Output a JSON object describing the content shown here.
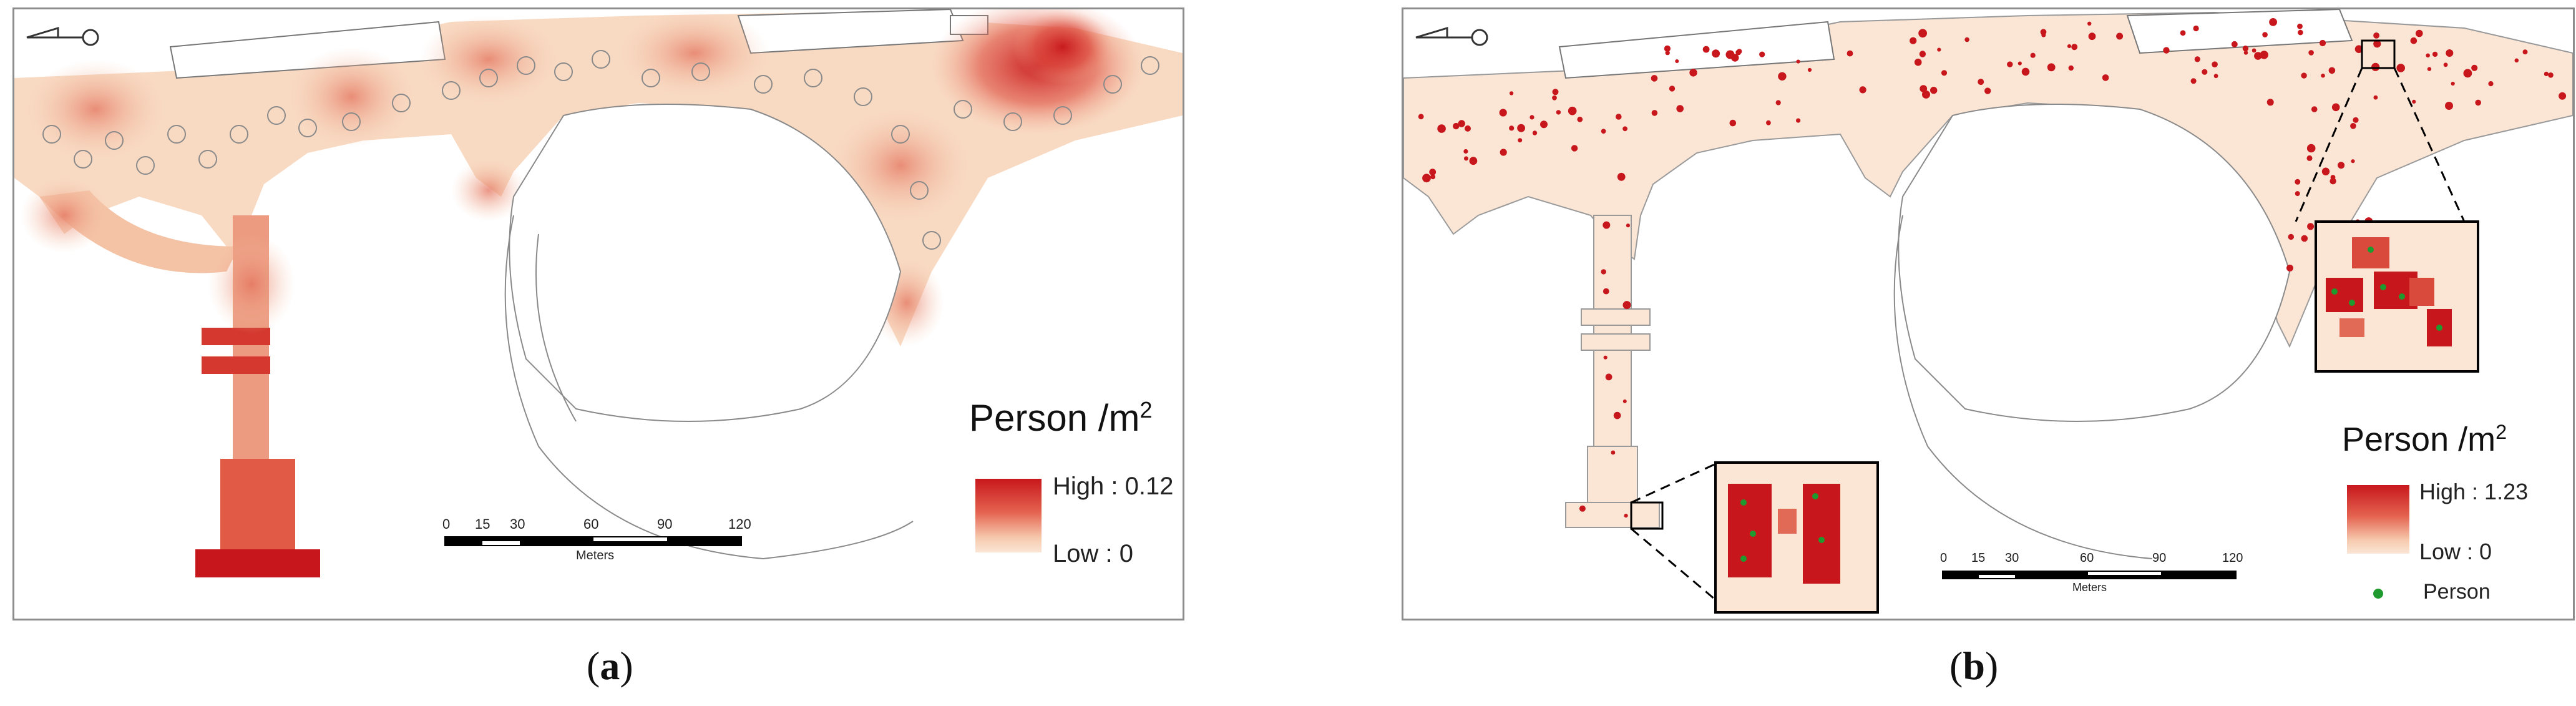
{
  "panels": {
    "a": {
      "legend_title": "Person /m",
      "legend_title_sup": "2",
      "high_label": "High : 0.12",
      "low_label": "Low : 0",
      "scale_ticks": [
        "0",
        "15",
        "30",
        "60",
        "90",
        "120"
      ],
      "scale_unit": "Meters",
      "colors": {
        "high": "#c8171c",
        "low": "#fbe6d6"
      }
    },
    "b": {
      "legend_title": "Person /m",
      "legend_title_sup": "2",
      "high_label": "High : 1.23",
      "low_label": "Low : 0",
      "person_label": "Person",
      "scale_ticks": [
        "0",
        "15",
        "30",
        "60",
        "90",
        "120"
      ],
      "scale_unit": "Meters",
      "colors": {
        "high": "#c8171c",
        "low": "#fbe6d6",
        "person": "#1f9a2f"
      }
    }
  },
  "captions": {
    "a": "a",
    "b": "b"
  }
}
